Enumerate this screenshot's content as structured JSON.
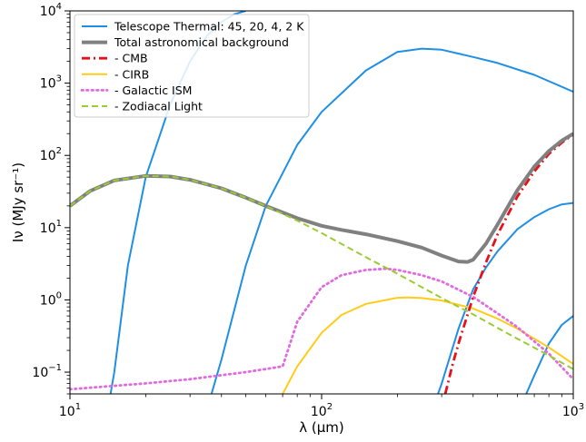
{
  "chart_data": {
    "type": "line",
    "xscale": "log",
    "yscale": "log",
    "xlim": [
      10,
      1000
    ],
    "ylim": [
      0.05,
      10000
    ],
    "xlabel": "λ (μm)",
    "ylabel": "Iν (MJy sr⁻¹)",
    "x_ticks": [
      {
        "value": 10,
        "base": "10",
        "exp": "1"
      },
      {
        "value": 100,
        "base": "10",
        "exp": "2"
      },
      {
        "value": 1000,
        "base": "10",
        "exp": "3"
      }
    ],
    "y_ticks": [
      {
        "value": 0.1,
        "base": "10",
        "exp": "−1"
      },
      {
        "value": 1,
        "base": "10",
        "exp": "0"
      },
      {
        "value": 10,
        "base": "10",
        "exp": "1"
      },
      {
        "value": 100,
        "base": "10",
        "exp": "2"
      },
      {
        "value": 1000,
        "base": "10",
        "exp": "3"
      },
      {
        "value": 10000,
        "base": "10",
        "exp": "4"
      }
    ],
    "legend_position": "top-left",
    "series": [
      {
        "name": "Telescope Thermal: 45, 20, 4, 2 K",
        "color": "#1f8fe5",
        "style": "solid",
        "components": [
          {
            "temperature_K": 45,
            "x": [
              14.5,
              15,
              17,
              20,
              25,
              30,
              35,
              40,
              45,
              50
            ],
            "y": [
              0.05,
              0.1,
              3,
              50,
              500,
              2000,
              4500,
              7000,
              9000,
              10000
            ]
          },
          {
            "temperature_K": 20,
            "x": [
              36.5,
              40,
              50,
              60,
              80,
              100,
              150,
              200,
              250,
              300,
              400,
              500,
              700,
              1000
            ],
            "y": [
              0.05,
              0.15,
              3,
              20,
              140,
              400,
              1500,
              2700,
              3000,
              2900,
              2300,
              1900,
              1300,
              760
            ]
          },
          {
            "temperature_K": 4,
            "x": [
              290,
              300,
              350,
              400,
              450,
              500,
              600,
              700,
              800,
              900,
              1000
            ],
            "y": [
              0.05,
              0.07,
              0.4,
              1.4,
              2.8,
              4.7,
              9.5,
              14,
              18,
              21,
              22
            ]
          },
          {
            "temperature_K": 2,
            "x": [
              650,
              700,
              800,
              900,
              1000
            ],
            "y": [
              0.05,
              0.09,
              0.25,
              0.45,
              0.6
            ]
          }
        ]
      },
      {
        "name": "Total astronomical background",
        "color": "#808080",
        "style": "solid-thick",
        "x": [
          10,
          12,
          15,
          20,
          25,
          30,
          40,
          50,
          60,
          80,
          100,
          120,
          150,
          200,
          250,
          300,
          350,
          380,
          400,
          450,
          500,
          600,
          700,
          800,
          900,
          1000
        ],
        "y": [
          20,
          32,
          45,
          52,
          51,
          46,
          35,
          26,
          20,
          13.5,
          10.6,
          9.3,
          8.1,
          6.5,
          5.3,
          4.1,
          3.4,
          3.35,
          3.6,
          6,
          11,
          33,
          70,
          115,
          160,
          200
        ]
      },
      {
        "name": " - CMB",
        "color": "#e8101b",
        "style": "dashdot",
        "x": [
          310,
          330,
          350,
          400,
          450,
          500,
          600,
          700,
          800,
          900,
          1000
        ],
        "y": [
          0.05,
          0.12,
          0.25,
          1.1,
          3.3,
          8,
          27,
          60,
          105,
          150,
          195
        ]
      },
      {
        "name": " - CIRB",
        "color": "#ffcc1a",
        "style": "solid",
        "x": [
          70,
          80,
          100,
          120,
          150,
          200,
          220,
          250,
          300,
          400,
          500,
          600,
          800,
          1000
        ],
        "y": [
          0.05,
          0.12,
          0.35,
          0.62,
          0.88,
          1.07,
          1.08,
          1.06,
          0.98,
          0.76,
          0.55,
          0.4,
          0.22,
          0.13
        ]
      },
      {
        "name": " - Galactic ISM",
        "color": "#e06be0",
        "style": "dotted",
        "x": [
          10,
          20,
          30,
          50,
          70,
          80,
          100,
          120,
          150,
          180,
          200,
          250,
          300,
          400,
          500,
          600,
          800,
          1000
        ],
        "y": [
          0.058,
          0.07,
          0.08,
          0.1,
          0.12,
          0.5,
          1.5,
          2.2,
          2.6,
          2.7,
          2.6,
          2.2,
          1.8,
          1.1,
          0.65,
          0.42,
          0.18,
          0.08
        ]
      },
      {
        "name": " - Zodiacal Light",
        "color": "#9acd32",
        "style": "dashed",
        "x": [
          10,
          12,
          15,
          20,
          25,
          30,
          40,
          50,
          60,
          80,
          100,
          150,
          200,
          300,
          400,
          500,
          600,
          800,
          1000
        ],
        "y": [
          20,
          32,
          45,
          52,
          51,
          46,
          35,
          26,
          20,
          12.5,
          8.4,
          3.9,
          2.3,
          1.06,
          0.63,
          0.41,
          0.29,
          0.17,
          0.11
        ]
      }
    ]
  }
}
